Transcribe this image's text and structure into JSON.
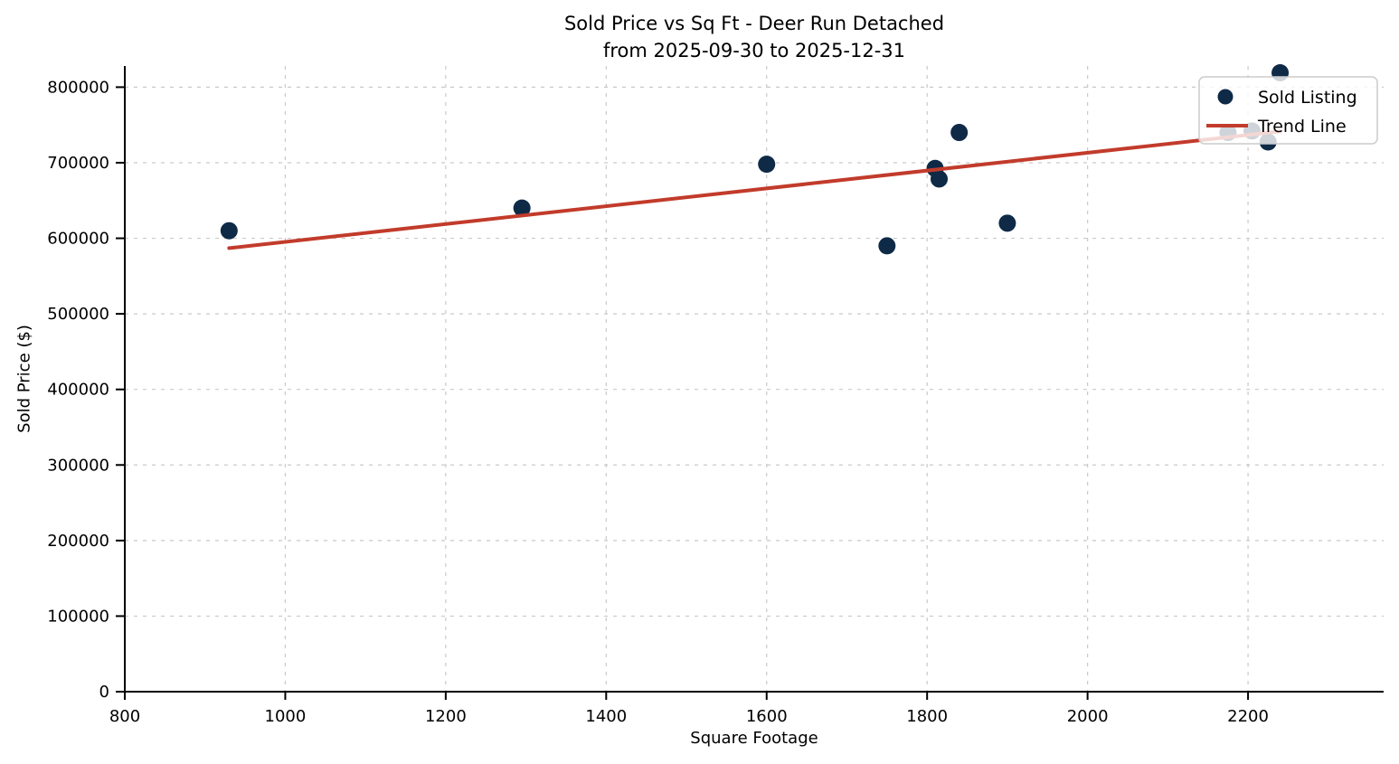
{
  "figure": {
    "title_line1": "Sold Price vs Sq Ft - Deer Run Detached",
    "title_line2": "from 2025-09-30 to 2025-12-31",
    "xlabel": "Square Footage",
    "ylabel": "Sold Price ($)"
  },
  "colors": {
    "point": "#0e2a47",
    "trend": "#c23b2b",
    "grid": "#c9c9c9",
    "spine": "#000000",
    "background": "#ffffff",
    "legend_bg": "rgba(255,255,255,0.8)",
    "legend_border": "#cccccc"
  },
  "chart_data": {
    "type": "scatter",
    "title": "Sold Price vs Sq Ft - Deer Run Detached\nfrom 2025-09-30 to 2025-12-31",
    "xlabel": "Square Footage",
    "ylabel": "Sold Price ($)",
    "xlim": [
      800,
      2369
    ],
    "ylim": [
      0,
      828000
    ],
    "x_ticks": [
      800,
      1000,
      1200,
      1400,
      1600,
      1800,
      2000,
      2200
    ],
    "y_ticks": [
      0,
      100000,
      200000,
      300000,
      400000,
      500000,
      600000,
      700000,
      800000
    ],
    "grid": true,
    "legend_position": "upper right",
    "legend_entries": [
      "Sold Listing",
      "Trend Line"
    ],
    "series": [
      {
        "name": "Sold Listing",
        "type": "scatter",
        "color": "#0e2a47",
        "marker_radius": 9.5,
        "points": [
          [
            930,
            610000
          ],
          [
            1295,
            640000
          ],
          [
            1600,
            698000
          ],
          [
            1750,
            590000
          ],
          [
            1810,
            692500
          ],
          [
            1815,
            678500
          ],
          [
            1840,
            740000
          ],
          [
            1900,
            620000
          ],
          [
            2175,
            740000
          ],
          [
            2205,
            742000
          ],
          [
            2225,
            727500
          ],
          [
            2240,
            819000
          ]
        ]
      },
      {
        "name": "Trend Line",
        "type": "line",
        "color": "#c23b2b",
        "stroke_width": 4,
        "points": [
          [
            930,
            587000
          ],
          [
            2240,
            741500
          ]
        ]
      }
    ]
  }
}
